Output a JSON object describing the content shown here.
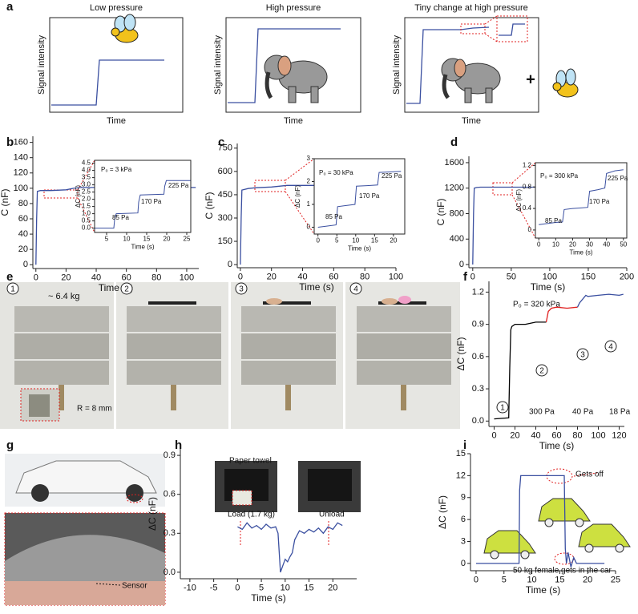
{
  "panel_a": {
    "panel": "a",
    "plus": "+",
    "schematics": [
      {
        "title": "Low pressure",
        "xlabel": "Time",
        "ylabel": "Signal intensity"
      },
      {
        "title": "High pressure",
        "xlabel": "Time",
        "ylabel": "Signal intensity"
      },
      {
        "title": "Tiny change at high pressure",
        "xlabel": "Time",
        "ylabel": "Signal intensity"
      }
    ]
  },
  "panel_e": {
    "panel": "e",
    "markers": [
      "1",
      "2",
      "3",
      "4"
    ],
    "annotations": [
      "~ 6.4 kg",
      "R = 8 mm"
    ]
  },
  "panel_g": {
    "panel": "g",
    "annotations": [
      "Sensor"
    ]
  },
  "chart_data": [
    {
      "panel": "b",
      "type": "line",
      "xlabel": "Time (s)",
      "ylabel": "C (nF)",
      "xlim": [
        -2,
        108
      ],
      "ylim": [
        -5,
        168
      ],
      "xticks": [
        0,
        20,
        40,
        60,
        80,
        100
      ],
      "yticks": [
        0,
        20,
        40,
        60,
        80,
        100,
        120,
        140,
        160
      ],
      "series": [
        {
          "color": "#3a4fa0",
          "x": [
            0,
            0.5,
            1,
            3,
            5,
            10,
            20,
            25,
            30,
            40,
            60,
            80,
            106
          ],
          "values": [
            0,
            60,
            96,
            97,
            97,
            97,
            98,
            100,
            101,
            101,
            101,
            101,
            101
          ]
        }
      ],
      "inset": {
        "type": "line",
        "frame": true,
        "xlabel": "Time (s)",
        "ylabel": "ΔC (nF)",
        "xlim": [
          2,
          26
        ],
        "ylim": [
          -0.3,
          4.7
        ],
        "xticks": [
          5,
          10,
          15,
          20,
          25
        ],
        "yticks": [
          {
            "value": 0,
            "label": "0.0"
          },
          0.5,
          {
            "value": 1,
            "label": "1.0"
          },
          1.5,
          {
            "value": 2,
            "label": "2.0"
          },
          2.5,
          {
            "value": 3,
            "label": "3.0"
          },
          3.5,
          {
            "value": 4,
            "label": "4.0"
          },
          4.5
        ],
        "series": [
          {
            "color": "#3a4fa0",
            "x": [
              2,
              6.8,
              7,
              7.4,
              12.8,
              13,
              13.4,
              19.3,
              19.5,
              19.9,
              26
            ],
            "values": [
              0,
              0,
              0.6,
              1,
              1.05,
              1.8,
              2.3,
              2.35,
              2.9,
              3.3,
              3.3
            ]
          }
        ],
        "annotations": [
          "P₀ = 3 kPa",
          "85 Pa",
          "170 Pa",
          "225 Pa"
        ]
      }
    },
    {
      "panel": "c",
      "type": "line",
      "xlabel": "Time (s)",
      "ylabel": "C (nF)",
      "xlim": [
        -2,
        100
      ],
      "ylim": [
        -20,
        780
      ],
      "xticks": [
        0,
        20,
        40,
        60,
        80,
        100
      ],
      "yticks": [
        0,
        150,
        300,
        450,
        600,
        750
      ],
      "series": [
        {
          "color": "#3a4fa0",
          "x": [
            0,
            0.5,
            1,
            5,
            10,
            20,
            30,
            50,
            70,
            100
          ],
          "values": [
            0,
            300,
            480,
            490,
            495,
            500,
            510,
            510,
            510,
            510
          ]
        }
      ],
      "inset": {
        "type": "line",
        "frame": true,
        "xlabel": "Time (s)",
        "ylabel": "ΔC (nF)",
        "xlim": [
          -1,
          23
        ],
        "ylim": [
          -0.3,
          3
        ],
        "xticks": [
          0,
          5,
          10,
          15,
          20
        ],
        "yticks": [
          0,
          1,
          2,
          3
        ],
        "series": [
          {
            "color": "#3a4fa0",
            "x": [
              0,
              2.5,
              4.8,
              5.2,
              7.5,
              9.8,
              10.2,
              13,
              15.8,
              16.2,
              19,
              22
            ],
            "values": [
              0,
              0.05,
              0.1,
              0.9,
              0.95,
              1.0,
              1.8,
              1.82,
              1.85,
              2.4,
              2.42,
              2.45
            ]
          }
        ],
        "annotations": [
          "P₀ = 30 kPa",
          "85 Pa",
          "170 Pa",
          "225 Pa"
        ]
      }
    },
    {
      "panel": "d",
      "type": "line",
      "xlabel": "Time (s)",
      "ylabel": "C (nF)",
      "xlim": [
        -5,
        200
      ],
      "ylim": [
        -50,
        1700
      ],
      "xticks": [
        0,
        50,
        100,
        150,
        200
      ],
      "yticks": [
        0,
        400,
        800,
        1200,
        1600
      ],
      "series": [
        {
          "color": "#3a4fa0",
          "x": [
            0,
            1,
            2,
            5,
            10,
            30,
            60,
            100,
            150,
            190
          ],
          "values": [
            0,
            800,
            1200,
            1210,
            1215,
            1215,
            1215,
            1215,
            1215,
            1215
          ]
        }
      ],
      "inset": {
        "type": "line",
        "frame": true,
        "xlabel": "Time (s)",
        "ylabel": "ΔC (nF)",
        "xlim": [
          -2,
          52
        ],
        "ylim": [
          -0.15,
          1.25
        ],
        "xticks": [
          0,
          10,
          20,
          30,
          40,
          50
        ],
        "yticks": [
          0,
          0.4,
          0.8,
          1.2
        ],
        "series": [
          {
            "color": "#3a4fa0",
            "x": [
              0,
              5,
              10,
              14,
              15,
              20,
              25,
              29,
              30,
              35,
              39,
              40,
              45,
              50
            ],
            "values": [
              0.1,
              0.12,
              0.14,
              0.15,
              0.38,
              0.4,
              0.41,
              0.42,
              0.72,
              0.75,
              0.78,
              1.05,
              1.1,
              1.12
            ]
          }
        ],
        "annotations": [
          "P₀ = 300 kPa",
          "85 Pa",
          "170 Pa",
          "225 Pa"
        ]
      }
    },
    {
      "panel": "f",
      "type": "line",
      "xlabel": "Time (s)",
      "ylabel": "ΔC (nF)",
      "xlim": [
        -5,
        125
      ],
      "ylim": [
        -0.05,
        1.3
      ],
      "xticks": [
        0,
        20,
        40,
        60,
        80,
        100,
        120
      ],
      "yticks": [
        {
          "value": 0,
          "label": "0.0"
        },
        0.3,
        0.6,
        0.9,
        1.2
      ],
      "series": [
        {
          "color": "#000000",
          "x": [
            0,
            14,
            15,
            16,
            17,
            20,
            30,
            40,
            50
          ],
          "values": [
            0.02,
            0.03,
            0.5,
            0.85,
            0.88,
            0.9,
            0.9,
            0.92,
            0.92
          ]
        },
        {
          "color": "#e02020",
          "x": [
            50,
            52,
            55,
            60,
            70,
            80
          ],
          "values": [
            0.92,
            1.02,
            1.05,
            1.06,
            1.05,
            1.06
          ]
        },
        {
          "color": "#3a4fa0",
          "x": [
            80,
            82,
            88,
            90,
            100,
            110,
            120,
            124
          ],
          "values": [
            1.06,
            1.1,
            1.17,
            1.16,
            1.17,
            1.18,
            1.17,
            1.18
          ]
        }
      ],
      "annotations": [
        "P₀ = 320 kPa",
        "300 Pa",
        "40 Pa",
        "18 Pa"
      ],
      "markers": [
        "1",
        "2",
        "3",
        "4"
      ]
    },
    {
      "panel": "h",
      "type": "line",
      "xlabel": "Time (s)",
      "ylabel": "ΔC (nF)",
      "xlim": [
        -12,
        25
      ],
      "ylim": [
        -0.05,
        0.95
      ],
      "xticks": [
        -10,
        -5,
        0,
        5,
        10,
        15,
        20
      ],
      "yticks": [
        {
          "value": 0,
          "label": "0.0"
        },
        0.3,
        0.6,
        0.9
      ],
      "series": [
        {
          "color": "#3a4fa0",
          "x": [
            0,
            1,
            2,
            3,
            4,
            5,
            6,
            7,
            8,
            8.5,
            9,
            9.5,
            10,
            10.5,
            11,
            11.5,
            12,
            13,
            14,
            15,
            16,
            17,
            18,
            19,
            20,
            21,
            22
          ],
          "values": [
            0.35,
            0.33,
            0.38,
            0.34,
            0.36,
            0.33,
            0.37,
            0.34,
            0.35,
            0.3,
            0,
            0.05,
            0.1,
            0.08,
            0.12,
            0.15,
            0.25,
            0.32,
            0.3,
            0.33,
            0.31,
            0.34,
            0.3,
            0.35,
            0.33,
            0.38,
            0.36
          ]
        }
      ],
      "annotations": [
        "Paper towel",
        "Load (1.7 kg)",
        "Unload"
      ]
    },
    {
      "panel": "i",
      "type": "line",
      "xlabel": "Time (s)",
      "ylabel": "ΔC (nF)",
      "xlim": [
        -1,
        25
      ],
      "ylim": [
        -1,
        15
      ],
      "xticks": [
        0,
        5,
        10,
        15,
        20,
        25
      ],
      "yticks": [
        0,
        3,
        6,
        9,
        12,
        15
      ],
      "series": [
        {
          "color": "#3a4fa0",
          "x": [
            0,
            2,
            4,
            6,
            7.7,
            7.8,
            8,
            10,
            12,
            14,
            15.8,
            16,
            16.2,
            16.5,
            17,
            17.5,
            18,
            20,
            23
          ],
          "values": [
            0,
            0,
            0,
            0,
            0,
            10,
            12,
            12,
            12,
            12,
            12,
            2,
            0,
            1.5,
            -0.5,
            0.8,
            0,
            0,
            0
          ]
        }
      ],
      "annotations": [
        "Gets off",
        "50 kg female gets in the car"
      ]
    }
  ]
}
